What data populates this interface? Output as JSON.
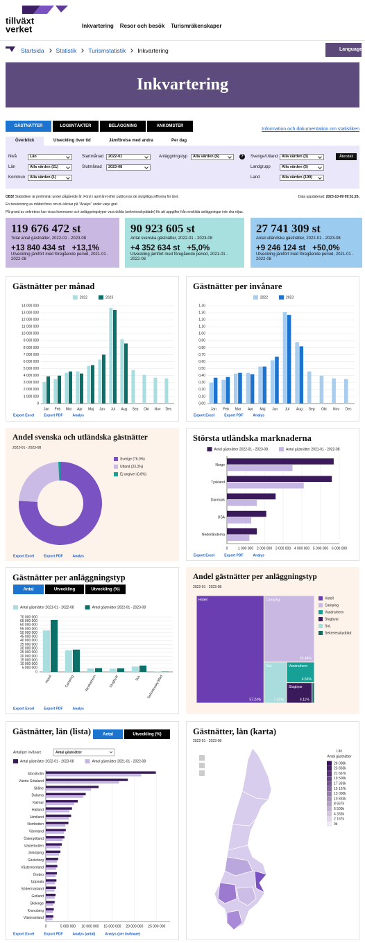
{
  "header": {
    "logo": [
      "tillväxt",
      "verket"
    ],
    "nav": [
      "Inkvartering",
      "Resor och besök",
      "Turismräkenskaper"
    ],
    "language": "Language"
  },
  "breadcrumb": [
    "Startsida",
    "Statistik",
    "Turismstatistik",
    "Inkvartering"
  ],
  "hero_title": "Inkvartering",
  "tabs": [
    "GÄSTNÄTTER",
    "LOGIINTÄKTER",
    "BELÄGGNING",
    "ANKOMSTER"
  ],
  "info_link": "Information och dokumentation om statistiken",
  "subtabs": [
    "Överblick",
    "Utveckling över tid",
    "Jämförelse med andra",
    "Per dag"
  ],
  "filters": {
    "items": [
      {
        "label": "Nivå",
        "value": "Län"
      },
      {
        "label": "Län",
        "value": "Alla värden (21)"
      },
      {
        "label": "Kommun",
        "value": "Alla värden (1)"
      },
      {
        "label": "Startmånad",
        "value": "2022-01"
      },
      {
        "label": "Slutmånad",
        "value": "2023-08"
      },
      {
        "label": "Anläggningstyp",
        "value": "Alla värden (6)"
      },
      {
        "label": "Sverige/Utland",
        "value": "Alla värden (3)"
      },
      {
        "label": "Landgrupp",
        "value": "Alla värden (5)"
      },
      {
        "label": "Land",
        "value": "Alla värden (199)"
      }
    ],
    "help": "?",
    "reset": "Återställ"
  },
  "notes": {
    "obs_label": "OBS!",
    "obs": "Statistiken är preliminär under pågående år. Först i april året efter publiceras de slutgiltiga siffrorna för året.",
    "updated_label": "Data uppdaterad:",
    "updated": "2023-10-09 09:51:26.",
    "lines": [
      "En beskrivning av måttet finns om du klickar på \"Analys\" under varje graf.",
      "På grund av sekretess kan vissa kommuner och anläggningstyper vara dolda (sekretesskyddade) för att uppgifter från enskilda anläggningar inte ska röjas."
    ]
  },
  "kpis": [
    {
      "value": "119 676 472 st",
      "label": "Total antal gästnätter, 2022-01 - 2023-08",
      "change": "+13 840 434 st",
      "change_pct": "+13,1%",
      "change_label": "Utveckling jämfört med föregående period, 2021-01 - 2022-08"
    },
    {
      "value": "90 923 605 st",
      "label": "Antal svenska gästnätter, 2022-01 - 2023-08",
      "change": "+4 352 634 st",
      "change_pct": "+5,0%",
      "change_label": "Utveckling jämfört med föregående period, 2021-01 - 2022-08"
    },
    {
      "value": "27 741 309 st",
      "label": "Antal utländska gästnätter, 2022-01 - 2023-08",
      "change": "+9 246 124 st",
      "change_pct": "+50,0%",
      "change_label": "Utveckling jämfört med föregående period, 2021-01 - 2022-08"
    }
  ],
  "chart_data": [
    {
      "type": "bar",
      "title": "Gästnätter per månad",
      "categories": [
        "Jan",
        "Feb",
        "Mar",
        "Apr",
        "Maj",
        "Jun",
        "Jul",
        "Aug",
        "Sep",
        "Okt",
        "Nov",
        "Dec"
      ],
      "series": [
        {
          "name": "2022",
          "color": "#a8dedf",
          "values": [
            3100000,
            3500000,
            4400000,
            4600000,
            5400000,
            6300000,
            13700000,
            9200000,
            4800000,
            4100000,
            3700000,
            3600000
          ]
        },
        {
          "name": "2023",
          "color": "#0d7068",
          "values": [
            3900000,
            4000000,
            4600000,
            4300000,
            5500000,
            7000000,
            13400000,
            8600000,
            null,
            null,
            null,
            null
          ]
        }
      ],
      "ylim": [
        0,
        14000000
      ],
      "yticks": [
        0,
        {
          "value": 1000000,
          "label": "1 000 000"
        },
        {
          "value": 2000000,
          "label": "2 000 000"
        },
        {
          "value": 3000000,
          "label": "3 000 000"
        },
        {
          "value": 4000000,
          "label": "4 000 000"
        },
        {
          "value": 5000000,
          "label": "5 000 000"
        },
        {
          "value": 6000000,
          "label": "6 000 000"
        },
        {
          "value": 7000000,
          "label": "7 000 000"
        },
        {
          "value": 8000000,
          "label": "8 000 000"
        },
        {
          "value": 9000000,
          "label": "9 000 000"
        },
        {
          "value": 10000000,
          "label": "10 000 000"
        },
        {
          "value": 11000000,
          "label": "11 000 000"
        },
        {
          "value": 12000000,
          "label": "12 000 000"
        },
        {
          "value": 13000000,
          "label": "13 000 000"
        },
        {
          "value": 14000000,
          "label": "14 000 000"
        }
      ],
      "grid": true,
      "legend": "top",
      "links": [
        "Export Excel",
        "Export PDF",
        "Analys"
      ]
    },
    {
      "type": "bar",
      "title": "Gästnätter per invånare",
      "categories": [
        "Jan",
        "Feb",
        "Mar",
        "Apr",
        "Maj",
        "Jun",
        "Jul",
        "Aug",
        "Sep",
        "Okt",
        "Nov",
        "Dec"
      ],
      "series": [
        {
          "name": "2022",
          "color": "#a9cdee",
          "values": [
            0.3,
            0.34,
            0.43,
            0.44,
            0.53,
            0.62,
            1.31,
            0.88,
            0.46,
            0.4,
            0.36,
            0.35
          ]
        },
        {
          "name": "2023",
          "color": "#1c74cf",
          "values": [
            0.37,
            0.38,
            0.44,
            0.42,
            0.53,
            0.67,
            1.27,
            0.82,
            null,
            null,
            null,
            null
          ]
        }
      ],
      "ylim": [
        0,
        1.4
      ],
      "yticks": [
        {
          "value": 0,
          "label": "0,00"
        },
        {
          "value": 0.1,
          "label": "0,10"
        },
        {
          "value": 0.2,
          "label": "0,20"
        },
        {
          "value": 0.3,
          "label": "0,30"
        },
        {
          "value": 0.4,
          "label": "0,40"
        },
        {
          "value": 0.5,
          "label": "0,50"
        },
        {
          "value": 0.6,
          "label": "0,60"
        },
        {
          "value": 0.7,
          "label": "0,70"
        },
        {
          "value": 0.8,
          "label": "0,80"
        },
        {
          "value": 0.9,
          "label": "0,90"
        },
        {
          "value": 1.0,
          "label": "1,00"
        },
        {
          "value": 1.1,
          "label": "1,10"
        },
        {
          "value": 1.2,
          "label": "1,20"
        },
        {
          "value": 1.3,
          "label": "1,30"
        },
        {
          "value": 1.4,
          "label": "1,40"
        }
      ],
      "grid": true,
      "legend": "top",
      "links": [
        "Export Excel",
        "Export PDF",
        "Analys"
      ]
    },
    {
      "type": "pie",
      "title": "Andel svenska och utländska gästnätter",
      "subtitle": "2022-01 - 2023-08",
      "categories": [
        "Sverige (76.0%)",
        "Utland (23.2%)",
        "Ej angivet (0.8%)"
      ],
      "values": [
        76.0,
        23.2,
        0.8
      ],
      "colors": [
        "#7b52c1",
        "#c9bbe6",
        "#17a096"
      ],
      "donut": true,
      "legend": "right",
      "links": [
        "Export Excel",
        "Export PDF",
        "Analys"
      ]
    },
    {
      "type": "hbar",
      "title": "Största utländska marknaderna",
      "categories": [
        "Norge",
        "Tyskland",
        "Danmark",
        "USA",
        "Nederländerna"
      ],
      "series": [
        {
          "name": "Antal gästnätter 2022-01 - 2023-08",
          "color": "#3b1a5c",
          "values": [
            5700000,
            5600000,
            2600000,
            2100000,
            1600000
          ]
        },
        {
          "name": "Antal gästnätter 2021-01 - 2022-08",
          "color": "#c6b6e4",
          "values": [
            3500000,
            4100000,
            1600000,
            1300000,
            1200000
          ]
        }
      ],
      "xlim": [
        0,
        6000000
      ],
      "xticks": [
        0,
        {
          "value": 1000000,
          "label": "1 000 000"
        },
        {
          "value": 2000000,
          "label": "2 000 000"
        },
        {
          "value": 3000000,
          "label": "3 000 000"
        },
        {
          "value": 4000000,
          "label": "4 000 000"
        },
        {
          "value": 5000000,
          "label": "5 000 000"
        },
        {
          "value": 6000000,
          "label": "6 000 000"
        }
      ],
      "grid": true,
      "legend": "top",
      "links": [
        "Export Excel",
        "Export PDF",
        "Analys"
      ]
    },
    {
      "type": "bar",
      "title": "Gästnätter per anläggningstyp",
      "tabs": [
        "Antal",
        "Utveckling",
        "Utveckling (%)"
      ],
      "categories": [
        "Hotell",
        "Camping",
        "Vandrarhem",
        "Stugbyar",
        "SoL",
        "Sekretesskyddad"
      ],
      "series": [
        {
          "name": "Antal gästnätter 2021-01 - 2022-08",
          "color": "#a8dedf",
          "values": [
            53000000,
            27500000,
            4200000,
            4000000,
            6800000,
            300000
          ]
        },
        {
          "name": "Antal gästnätter 2022-01 - 2023-08",
          "color": "#0d7068",
          "values": [
            66500000,
            28500000,
            4800000,
            4500000,
            8100000,
            400000
          ]
        }
      ],
      "ylim": [
        0,
        70000000
      ],
      "yticks": [
        0,
        {
          "value": 5000000,
          "label": "5 000 000"
        },
        {
          "value": 10000000,
          "label": "10 000 000"
        },
        {
          "value": 15000000,
          "label": "15 000 000"
        },
        {
          "value": 20000000,
          "label": "20 000 000"
        },
        {
          "value": 25000000,
          "label": "25 000 000"
        },
        {
          "value": 30000000,
          "label": "30 000 000"
        },
        {
          "value": 35000000,
          "label": "35 000 000"
        },
        {
          "value": 40000000,
          "label": "40 000 000"
        },
        {
          "value": 45000000,
          "label": "45 000 000"
        },
        {
          "value": 50000000,
          "label": "50 000 000"
        },
        {
          "value": 55000000,
          "label": "55 000 000"
        },
        {
          "value": 60000000,
          "label": "60 000 000"
        },
        {
          "value": 65000000,
          "label": "65 000 000"
        },
        {
          "value": 70000000,
          "label": "70 000 000"
        }
      ],
      "grid": true,
      "legend": "top-left",
      "rotate_labels": true,
      "links": [
        "Export Excel",
        "Export PDF",
        "Analys"
      ]
    },
    {
      "type": "treemap",
      "title": "Andel gästnätter per anläggningstyp",
      "subtitle": "2022-01 - 2023-08",
      "categories": [
        "Hotell",
        "Camping",
        "Vandrarhem",
        "Stugbyar",
        "SoL",
        "Sekretesskyddad"
      ],
      "values": [
        57.24,
        26.44,
        4.54,
        4.11,
        7.31,
        0.36
      ],
      "value_labels": [
        "57.24%",
        "26.44%",
        "4.54%",
        "4.11%",
        "7.31%",
        null
      ],
      "colors": [
        "#6a3db0",
        "#c8b8e2",
        "#17a096",
        "#3b1a5c",
        "#a9dcdc",
        "#0f6a62"
      ],
      "legend": "right"
    },
    {
      "type": "hbar",
      "title": "Gästnätter, län (lista)",
      "tabs": [
        "Antal",
        "Utveckling (%)"
      ],
      "control_label": "Antal/per invånare",
      "control_value": "Antal gästnätter",
      "categories": [
        "Stockholm",
        "Västra Götaland",
        "Skåne",
        "Dalarna",
        "Kalmar",
        "Halland",
        "Jämtland",
        "Norrbotten",
        "Värmland",
        "Östergötland",
        "Västerbotten",
        "Jönköping",
        "Gävleborg",
        "Västernorrland",
        "Örebro",
        "Uppsala",
        "Södermanland",
        "Gotland",
        "Blekinge",
        "Kronoberg",
        "Västmanland"
      ],
      "series": [
        {
          "name": "Antal gästnätter 2022-01 - 2023-08",
          "color": "#3b1a5c",
          "values": [
            24800000,
            18500000,
            11900000,
            9000000,
            7200000,
            5900000,
            5700000,
            5100000,
            4500000,
            4200000,
            3600000,
            3300000,
            2800000,
            2600000,
            2500000,
            2400000,
            2300000,
            2200000,
            2000000,
            1800000,
            1700000
          ]
        },
        {
          "name": "Antal gästnätter 2021-01 - 2022-08",
          "color": "#c6b6e4",
          "values": [
            21500000,
            16500000,
            10200000,
            8400000,
            6400000,
            5300000,
            5200000,
            4400000,
            4100000,
            3800000,
            3300000,
            3000000,
            2500000,
            2300000,
            2200000,
            2100000,
            2000000,
            2000000,
            1700000,
            1600000,
            1500000
          ]
        }
      ],
      "xlim": [
        0,
        28000000
      ],
      "xticks": [
        0,
        {
          "value": 5000000,
          "label": "5 000 000"
        },
        {
          "value": 10000000,
          "label": "10 000 000"
        },
        {
          "value": 15000000,
          "label": "15 000 000"
        },
        {
          "value": 20000000,
          "label": "20 000 000"
        },
        {
          "value": 25000000,
          "label": "25 000 000"
        }
      ],
      "grid": true,
      "legend": "top-left",
      "links": [
        "Export Excel",
        "Export PDF",
        "Analys (antal)",
        "Analys (per invånare)"
      ]
    },
    {
      "type": "map",
      "title": "Gästnätter, län (karta)",
      "subtitle": "2022-01 - 2023-08",
      "legend_title": "Län",
      "legend_subtitle": "Antal gästnätter",
      "legend_labels": [
        "26 000k",
        "23 833k",
        "21 667k",
        "19 500k",
        "17 333k",
        "15 167k",
        "13 000k",
        "10 833k",
        "8 667k",
        "6 500k",
        "4 333k",
        "2 167k",
        "0k"
      ],
      "color_range": [
        "#3a0f5e",
        "#efeaf6"
      ]
    }
  ]
}
